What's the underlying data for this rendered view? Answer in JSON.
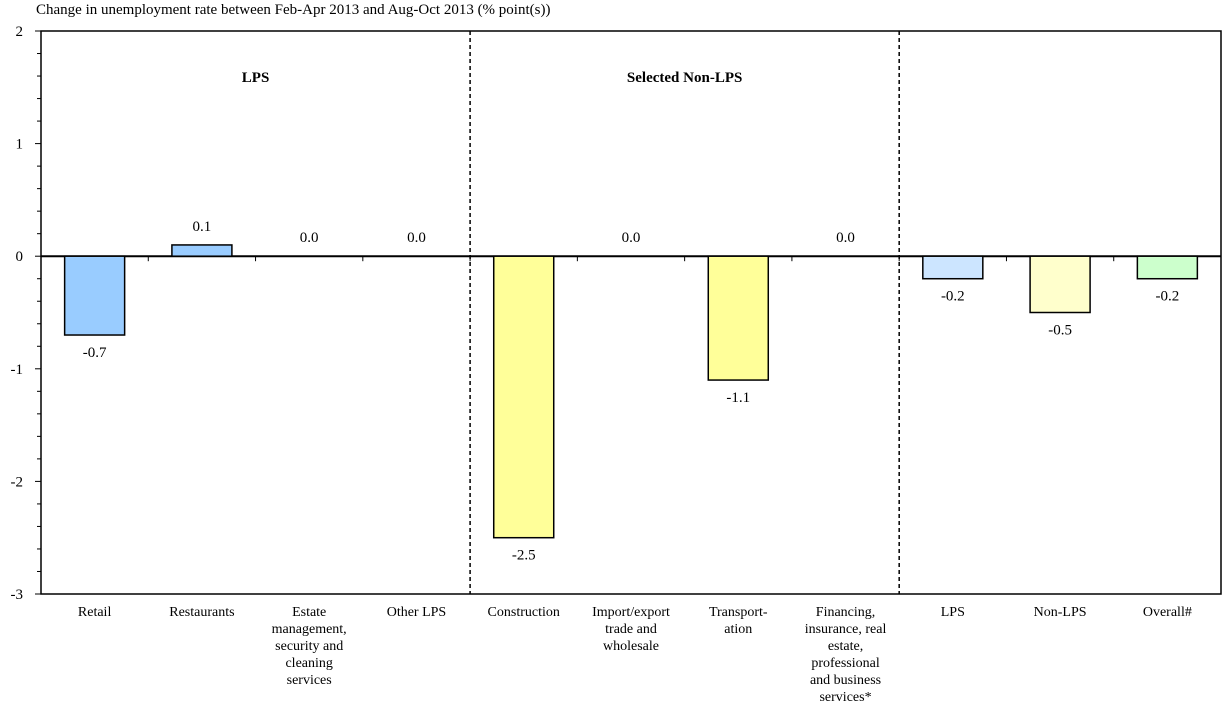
{
  "chart_data": {
    "type": "bar",
    "title": "Change in unemployment rate between Feb-Apr 2013 and Aug-Oct 2013 (% point(s))",
    "ylim": [
      -3,
      2
    ],
    "yticks": [
      "2",
      "1",
      "0",
      "-1",
      "-2",
      "-3"
    ],
    "groups": [
      {
        "label": "LPS",
        "start": 0,
        "end": 4
      },
      {
        "label": "Selected Non-LPS",
        "start": 4,
        "end": 8
      },
      {
        "label": "",
        "start": 8,
        "end": 11
      }
    ],
    "categories": [
      "Retail",
      "Restaurants",
      "Estate management, security and cleaning services",
      "Other LPS",
      "Construction",
      "Import/export trade and wholesale",
      "Transport-ation",
      "Financing, insurance, real estate, professional and business services*",
      "LPS",
      "Non-LPS",
      "Overall#"
    ],
    "category_lines": [
      [
        "Retail"
      ],
      [
        "Restaurants"
      ],
      [
        "Estate",
        "management,",
        "security and",
        "cleaning",
        "services"
      ],
      [
        "Other LPS"
      ],
      [
        "Construction"
      ],
      [
        "Import/export",
        "trade and",
        "wholesale"
      ],
      [
        "Transport-",
        "ation"
      ],
      [
        "Financing,",
        "insurance, real",
        "estate,",
        "professional",
        "and business",
        "services*"
      ],
      [
        "LPS"
      ],
      [
        "Non-LPS"
      ],
      [
        "Overall#"
      ]
    ],
    "values": [
      -0.7,
      0.1,
      0.0,
      0.0,
      -2.5,
      0.0,
      -1.1,
      0.0,
      -0.2,
      -0.5,
      -0.2
    ],
    "value_labels": [
      "-0.7",
      "0.1",
      "0.0",
      "0.0",
      "-2.5",
      "0.0",
      "-1.1",
      "0.0",
      "-0.2",
      "-0.5",
      "-0.2"
    ],
    "colors": [
      "#99ccff",
      "#99ccff",
      "#99ccff",
      "#99ccff",
      "#ffff99",
      "#ffff99",
      "#ffff99",
      "#ffff99",
      "#cce5ff",
      "#ffffcc",
      "#ccffcc"
    ]
  }
}
